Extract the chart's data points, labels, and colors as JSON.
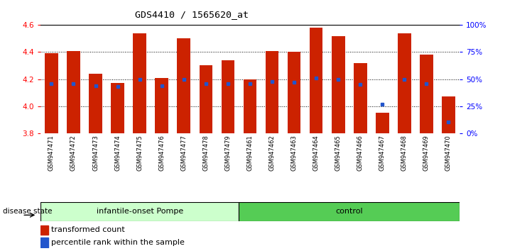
{
  "title": "GDS4410 / 1565620_at",
  "samples": [
    "GSM947471",
    "GSM947472",
    "GSM947473",
    "GSM947474",
    "GSM947475",
    "GSM947476",
    "GSM947477",
    "GSM947478",
    "GSM947479",
    "GSM947461",
    "GSM947462",
    "GSM947463",
    "GSM947464",
    "GSM947465",
    "GSM947466",
    "GSM947467",
    "GSM947468",
    "GSM947469",
    "GSM947470"
  ],
  "transformed_count": [
    4.39,
    4.41,
    4.24,
    4.17,
    4.54,
    4.21,
    4.5,
    4.3,
    4.34,
    4.2,
    4.41,
    4.4,
    4.58,
    4.52,
    4.32,
    3.95,
    4.54,
    4.38,
    4.07
  ],
  "percentile_rank": [
    46,
    46,
    44,
    43,
    50,
    44,
    50,
    46,
    46,
    46,
    48,
    47,
    51,
    50,
    45,
    27,
    50,
    46,
    10
  ],
  "bar_bottom": 3.78,
  "ylim_left": [
    3.8,
    4.6
  ],
  "ylim_right": [
    0,
    100
  ],
  "yticks_left": [
    3.8,
    4.0,
    4.2,
    4.4,
    4.6
  ],
  "yticks_right": [
    0,
    25,
    50,
    75,
    100
  ],
  "ytick_labels_right": [
    "0%",
    "25%",
    "50%",
    "75%",
    "100%"
  ],
  "bar_color": "#cc2200",
  "blue_color": "#2255cc",
  "group1_label": "infantile-onset Pompe",
  "group2_label": "control",
  "group1_count": 9,
  "group2_count": 10,
  "disease_state_label": "disease state",
  "legend1": "transformed count",
  "legend2": "percentile rank within the sample",
  "background_color": "#ffffff",
  "plot_bg": "#ffffff",
  "group1_color": "#ccffcc",
  "group2_color": "#55cc55",
  "tick_bg": "#cccccc"
}
